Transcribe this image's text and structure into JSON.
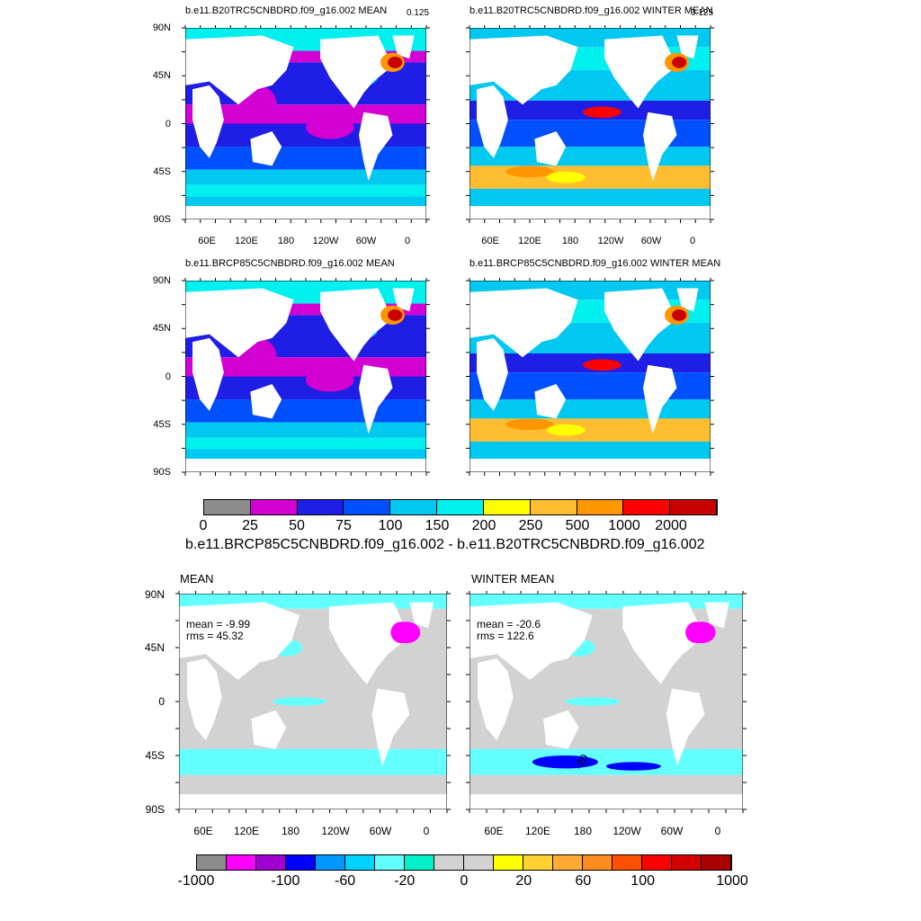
{
  "panels": [
    {
      "title": "b.e11.B20TRC5CNBDRD.f09_g16.002 MEAN",
      "corner": "0.125"
    },
    {
      "title": "b.e11.B20TRC5CNBDRD.f09_g16.002 WINTER MEAN",
      "corner": "0.125"
    },
    {
      "title": "b.e11.BRCP85C5CNBDRD.f09_g16.002 MEAN",
      "corner": ""
    },
    {
      "title": "b.e11.BRCP85C5CNBDRD.f09_g16.002 WINTER MEAN",
      "corner": ""
    }
  ],
  "diff_panels": [
    {
      "title": "MEAN",
      "mean": "mean = -9.99",
      "rms": "rms = 45.32"
    },
    {
      "title": "WINTER MEAN",
      "mean": "mean = -20.6",
      "rms": "rms = 122.6"
    }
  ],
  "diff_title": "b.e11.BRCP85C5CNBDRD.f09_g16.002 - b.e11.B20TRC5CNBDRD.f09_g16.002",
  "contour_label": "-20",
  "lat_labels": [
    "90N",
    "45N",
    "0",
    "45S",
    "90S"
  ],
  "lon_labels": [
    "60E",
    "120E",
    "180",
    "120W",
    "60W",
    "0"
  ],
  "colorbar_top": {
    "colors": [
      "#8c8c8c",
      "#d200d2",
      "#1e1ee6",
      "#0050ff",
      "#00c8f0",
      "#00f0f0",
      "#ffff00",
      "#ffbe32",
      "#ff9600",
      "#ff0000",
      "#c80000"
    ],
    "labels": [
      "0",
      "25",
      "50",
      "75",
      "100",
      "150",
      "200",
      "250",
      "500",
      "1000",
      "2000"
    ]
  },
  "colorbar_bottom": {
    "colors": [
      "#8c8c8c",
      "#ff00ff",
      "#a000d2",
      "#0000ff",
      "#0096ff",
      "#00d2ff",
      "#64ffff",
      "#00f0c8",
      "#d2d2d2",
      "#d2d2d2",
      "#ffff00",
      "#ffd232",
      "#ffaa32",
      "#ff8c1e",
      "#ff5000",
      "#ff0000",
      "#d20000",
      "#aa0000"
    ],
    "labels": [
      "-1000",
      "-100",
      "-60",
      "-20",
      "0",
      "20",
      "60",
      "100",
      "1000"
    ]
  }
}
